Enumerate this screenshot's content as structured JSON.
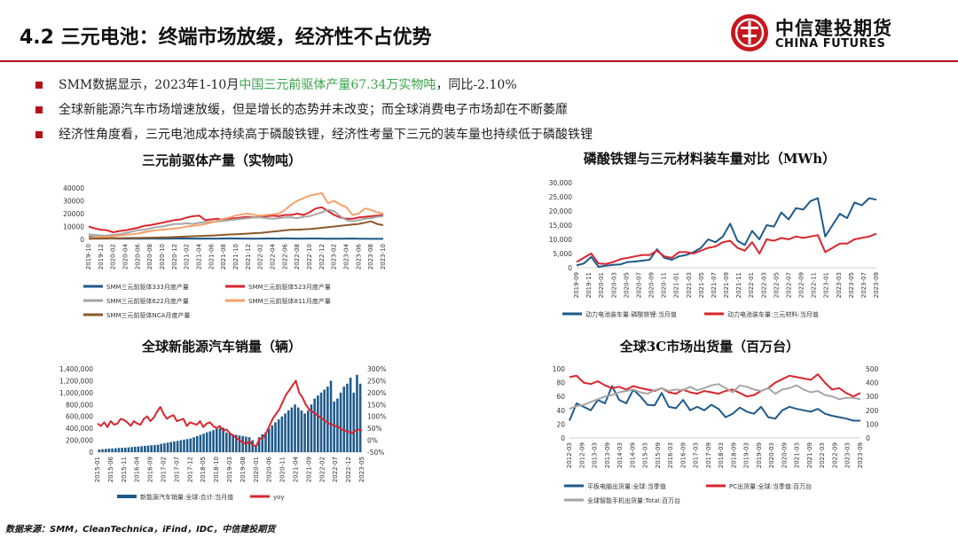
{
  "title": "4.2 三元电池：终端市场放缓，经济性不占优势",
  "logo": {
    "cn": "中信建投期货",
    "en": "CHINA FUTURES",
    "icon": "citic-logo-icon"
  },
  "bullets": [
    {
      "pre": "SMM数据显示，2023年1-10月",
      "hl": "中国三元前驱体产量67.34万实物吨",
      "post": "，同比-2.10%"
    },
    {
      "pre": "全球新能源汽车市场增速放缓，但是增长的态势并未改变；而全球消费电子市场却在不断萎靡",
      "hl": "",
      "post": ""
    },
    {
      "pre": "经济性角度看，三元电池成本持续高于磷酸铁锂，经济性考量下三元的装车量也持续低于磷酸铁锂",
      "hl": "",
      "post": ""
    }
  ],
  "source": "数据来源：SMM，CleanTechnica，iFind，IDC，中信建投期货",
  "colors": {
    "accent": "#b5121b",
    "blue": "#1f5a8a",
    "red": "#d9262d",
    "gray": "#a6a6a6",
    "orange": "#f4a16b",
    "brown": "#8b5a2b",
    "highlight": "#3aa34a"
  },
  "chart_data": [
    {
      "id": "c1",
      "type": "line",
      "title": "三元前驱体产量（实物吨）",
      "ylim": [
        0,
        40000
      ],
      "yticks": [
        0,
        10000,
        20000,
        30000,
        40000
      ],
      "xticks": [
        "2019-10",
        "2019-12",
        "2020-02",
        "2020-04",
        "2020-06",
        "2020-08",
        "2020-10",
        "2020-12",
        "2021-02",
        "2021-04",
        "2021-06",
        "2021-08",
        "2021-10",
        "2021-12",
        "2022-02",
        "2022-04",
        "2022-06",
        "2022-08",
        "2022-10",
        "2022-12",
        "2023-02",
        "2023-04",
        "2023-06",
        "2023-08",
        "2023-10"
      ],
      "legend": "bottom",
      "series": [
        {
          "name": "SMM三元前驱体333月度产量",
          "color": "#1f5a8a",
          "values": [
            2200,
            1800,
            1500,
            1000,
            800,
            600,
            700,
            600,
            700,
            600,
            700,
            700,
            600,
            600,
            700,
            700,
            700,
            600,
            600,
            700,
            600,
            600,
            700,
            800,
            700,
            600,
            600,
            500,
            600,
            700,
            700,
            600,
            800,
            700,
            600,
            600,
            700,
            700,
            600,
            500,
            600,
            500,
            600,
            700,
            500,
            500,
            400,
            400,
            400
          ]
        },
        {
          "name": "SMM三元前驱体523月度产量",
          "color": "#d9262d",
          "values": [
            10000,
            8500,
            7500,
            7000,
            5500,
            6500,
            7000,
            8000,
            9000,
            10500,
            11000,
            12000,
            13000,
            14000,
            15000,
            15500,
            17000,
            18000,
            18500,
            15000,
            15500,
            16000,
            15000,
            16000,
            16500,
            17000,
            17500,
            17000,
            17500,
            18000,
            18500,
            18000,
            19000,
            19000,
            20000,
            19000,
            21000,
            24000,
            25000,
            22000,
            19000,
            17000,
            16000,
            16000,
            17000,
            17500,
            18000,
            18500,
            19000
          ]
        },
        {
          "name": "SMM三元前驱体622月度产量",
          "color": "#a6a6a6",
          "values": [
            4000,
            3500,
            3000,
            3000,
            3500,
            4000,
            5000,
            6000,
            7000,
            7500,
            8500,
            9500,
            10000,
            11000,
            12000,
            12000,
            12500,
            12000,
            13000,
            13500,
            13500,
            14000,
            14500,
            15000,
            15500,
            16000,
            16500,
            17000,
            17000,
            16500,
            16000,
            16500,
            17000,
            17000,
            16500,
            17500,
            18000,
            19500,
            21000,
            23000,
            22000,
            18000,
            15000,
            14000,
            15000,
            16000,
            16500,
            17500,
            18000
          ]
        },
        {
          "name": "SMM三元前驱体811月度产量",
          "color": "#f4a16b",
          "values": [
            1500,
            1600,
            1800,
            2000,
            2500,
            3000,
            3500,
            4000,
            4500,
            5500,
            6500,
            7000,
            7500,
            8000,
            8500,
            9000,
            10000,
            10500,
            11000,
            12000,
            13000,
            14500,
            16000,
            17000,
            18500,
            19500,
            20000,
            19000,
            18500,
            19000,
            19500,
            20000,
            23000,
            27000,
            30000,
            32000,
            34000,
            35000,
            36000,
            28000,
            30000,
            27000,
            25000,
            19000,
            20000,
            24000,
            23000,
            21000,
            20000
          ]
        },
        {
          "name": "SMM三元前驱体NCA月度产量",
          "color": "#8b5a2b",
          "values": [
            500,
            600,
            600,
            700,
            800,
            900,
            1000,
            1100,
            1100,
            1200,
            1300,
            1400,
            1500,
            1600,
            1800,
            2000,
            2200,
            2400,
            2600,
            2800,
            3000,
            3200,
            3500,
            3800,
            4000,
            4200,
            4500,
            4800,
            5000,
            5500,
            6000,
            6500,
            7000,
            7500,
            7500,
            7800,
            8000,
            8500,
            9000,
            9500,
            10000,
            10500,
            11000,
            11500,
            12000,
            13000,
            14000,
            12000,
            11000
          ]
        }
      ]
    },
    {
      "id": "c2",
      "type": "line",
      "title": "磷酸铁锂与三元材料装车量对比（MWh）",
      "ylim": [
        0,
        30000
      ],
      "yticks": [
        0,
        5000,
        10000,
        15000,
        20000,
        25000,
        30000
      ],
      "xticks": [
        "2019-09",
        "2019-11",
        "2020-01",
        "2020-03",
        "2020-05",
        "2020-07",
        "2020-09",
        "2020-11",
        "2021-01",
        "2021-03",
        "2021-05",
        "2021-07",
        "2021-09",
        "2021-11",
        "2022-01",
        "2022-03",
        "2022-05",
        "2022-07",
        "2022-09",
        "2022-11",
        "2023-01",
        "2023-03",
        "2023-05",
        "2023-07",
        "2023-09"
      ],
      "legend": "bottom",
      "series": [
        {
          "name": "动力电池装车量:磷酸铁锂:当月值",
          "color": "#1f5a8a",
          "values": [
            800,
            1500,
            3800,
            300,
            700,
            1000,
            1200,
            2000,
            2200,
            2500,
            2800,
            6500,
            3500,
            2800,
            4000,
            4500,
            5500,
            7000,
            10000,
            9000,
            11000,
            15500,
            9500,
            8000,
            13000,
            10000,
            15000,
            14500,
            19500,
            17000,
            21000,
            20500,
            23500,
            24500,
            11000,
            15000,
            19000,
            17500,
            23000,
            22000,
            24500,
            24000
          ]
        },
        {
          "name": "动力电池装车量:三元材料:当月值",
          "color": "#d9262d",
          "values": [
            2000,
            3500,
            5000,
            1500,
            1300,
            2000,
            3000,
            3500,
            4000,
            4500,
            4500,
            6000,
            4000,
            3500,
            5500,
            5500,
            5000,
            6000,
            7000,
            7500,
            9000,
            9500,
            7000,
            6000,
            9000,
            5000,
            10000,
            9500,
            10500,
            10000,
            11000,
            10500,
            11000,
            11500,
            5500,
            7000,
            8500,
            8500,
            10000,
            10500,
            11000,
            12000
          ]
        }
      ]
    },
    {
      "id": "c3",
      "type": "bar",
      "title": "全球新能源汽车销量（辆）",
      "ylim": [
        0,
        1400000
      ],
      "yticks": [
        0,
        200000,
        400000,
        600000,
        800000,
        1000000,
        1200000,
        1400000
      ],
      "y2lim": [
        -50,
        300
      ],
      "y2ticks": [
        -50,
        0,
        50,
        100,
        150,
        200,
        250,
        300
      ],
      "xticks": [
        "2015-01",
        "2015-06",
        "2015-11",
        "2016-04",
        "2016-09",
        "2017-02",
        "2017-07",
        "2017-12",
        "2018-05",
        "2018-10",
        "2019-03",
        "2019-08",
        "2020-01",
        "2020-06",
        "2020-11",
        "2021-04",
        "2021-09",
        "2022-02",
        "2022-07",
        "2022-12",
        "2023-05"
      ],
      "legend": "bottom",
      "bar_series": {
        "name": "新能源汽车销量:全球:合计:当月值",
        "color": "#1f5a8a",
        "values": [
          45000,
          50000,
          55000,
          60000,
          62000,
          65000,
          70000,
          72000,
          75000,
          80000,
          85000,
          90000,
          95000,
          100000,
          105000,
          110000,
          115000,
          120000,
          125000,
          140000,
          150000,
          160000,
          170000,
          180000,
          190000,
          200000,
          210000,
          220000,
          230000,
          250000,
          270000,
          290000,
          310000,
          330000,
          350000,
          370000,
          390000,
          400000,
          410000,
          330000,
          320000,
          300000,
          290000,
          280000,
          270000,
          260000,
          250000,
          200000,
          100000,
          250000,
          300000,
          330000,
          400000,
          450000,
          500000,
          550000,
          600000,
          650000,
          700000,
          750000,
          800000,
          750000,
          700000,
          650000,
          700000,
          800000,
          900000,
          950000,
          1000000,
          1050000,
          1100000,
          1200000,
          850000,
          900000,
          1000000,
          1100000,
          1150000,
          1250000,
          1000000,
          1300000,
          1150000
        ]
      },
      "line_series": {
        "name": "yoy",
        "color": "#d9262d",
        "values": [
          70,
          60,
          75,
          55,
          80,
          65,
          70,
          90,
          85,
          75,
          60,
          80,
          70,
          65,
          90,
          100,
          80,
          95,
          120,
          140,
          110,
          90,
          100,
          105,
          80,
          85,
          90,
          60,
          75,
          70,
          65,
          80,
          55,
          70,
          75,
          60,
          50,
          60,
          40,
          45,
          30,
          20,
          10,
          0,
          -10,
          -15,
          -5,
          -20,
          -25,
          5,
          10,
          30,
          60,
          90,
          110,
          130,
          160,
          190,
          210,
          230,
          250,
          200,
          180,
          150,
          130,
          120,
          110,
          100,
          90,
          80,
          70,
          65,
          60,
          55,
          45,
          40,
          35,
          30,
          40,
          45,
          40
        ]
      }
    },
    {
      "id": "c4",
      "type": "line",
      "title": "全球3C市场出货量（百万台）",
      "ylim": [
        0,
        100
      ],
      "yticks": [
        0,
        20,
        40,
        60,
        80,
        100
      ],
      "y2lim": [
        0,
        500
      ],
      "y2ticks": [
        0,
        100,
        200,
        300,
        400,
        500
      ],
      "xticks": [
        "2012-03",
        "2012-09",
        "2013-03",
        "2013-09",
        "2014-03",
        "2014-09",
        "2015-03",
        "2015-09",
        "2016-03",
        "2016-09",
        "2017-03",
        "2017-09",
        "2018-03",
        "2018-09",
        "2019-03",
        "2019-09",
        "2020-03",
        "2020-09",
        "2021-03",
        "2021-09",
        "2022-03",
        "2022-09",
        "2023-03",
        "2023-09"
      ],
      "legend": "bottom",
      "series": [
        {
          "name": "平板电脑出货量:全球:当季值",
          "color": "#1f5a8a",
          "axis": "left",
          "values": [
            25,
            50,
            45,
            40,
            55,
            50,
            75,
            55,
            50,
            70,
            60,
            48,
            47,
            65,
            45,
            43,
            55,
            40,
            45,
            40,
            48,
            42,
            30,
            35,
            44,
            38,
            35,
            45,
            30,
            28,
            40,
            45,
            42,
            40,
            38,
            42,
            35,
            32,
            30,
            28,
            25,
            25
          ]
        },
        {
          "name": "PC出货量:全球:当季值:百万台",
          "color": "#d9262d",
          "axis": "left",
          "values": [
            88,
            90,
            80,
            78,
            82,
            76,
            72,
            74,
            70,
            75,
            72,
            70,
            68,
            72,
            66,
            64,
            70,
            66,
            64,
            68,
            66,
            64,
            68,
            70,
            65,
            60,
            62,
            68,
            72,
            80,
            85,
            90,
            88,
            86,
            84,
            92,
            80,
            70,
            72,
            65,
            60,
            65
          ]
        },
        {
          "name": "全球智能手机出货量:Total:百万台",
          "color": "#a6a6a6",
          "axis": "right",
          "values": [
            210,
            230,
            240,
            260,
            280,
            300,
            310,
            330,
            340,
            350,
            330,
            320,
            345,
            360,
            340,
            350,
            345,
            370,
            345,
            360,
            380,
            390,
            360,
            330,
            380,
            370,
            350,
            340,
            360,
            320,
            350,
            360,
            380,
            350,
            330,
            340,
            310,
            300,
            280,
            290,
            290,
            280
          ]
        }
      ]
    }
  ]
}
